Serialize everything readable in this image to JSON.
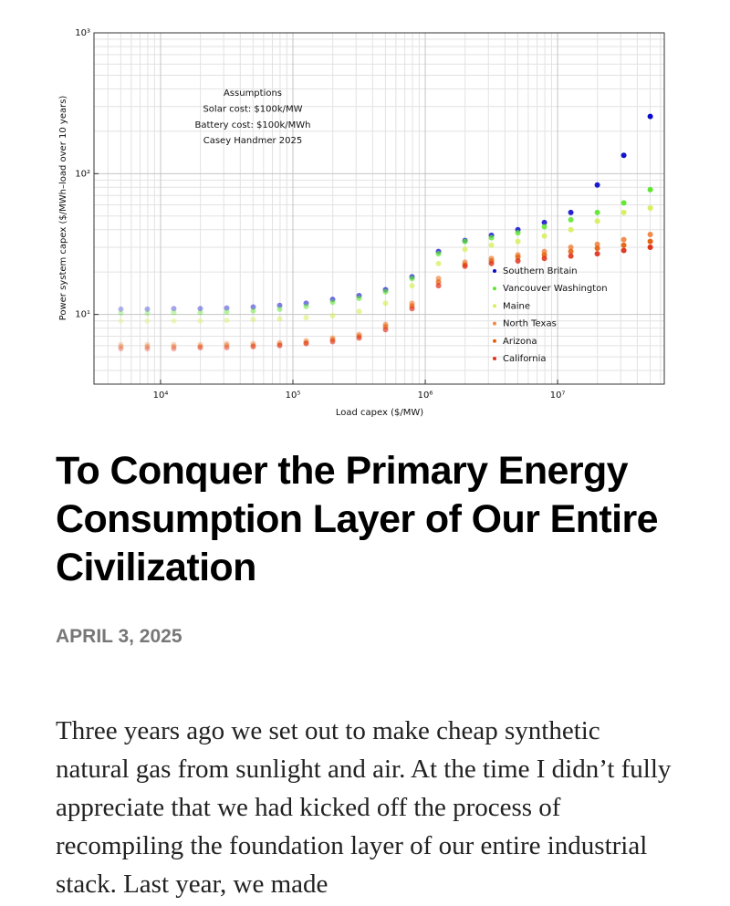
{
  "chart_data": {
    "type": "scatter",
    "xlabel": "Load capex ($/MW)",
    "ylabel": "Power system capex ($/MWh–load over 10 years)",
    "annotation": [
      "Assumptions",
      "Solar cost: $100k/MW",
      "Battery cost: $100k/MWh",
      "Casey Handmer 2025"
    ],
    "xlog": true,
    "ylog": true,
    "grid": true,
    "minor_grid": true,
    "legend": "lower right",
    "xlim": [
      3140,
      64000000
    ],
    "ylim": [
      3.2,
      1000
    ],
    "xticks": [
      {
        "value": 10000,
        "label": "10⁴"
      },
      {
        "value": 100000,
        "label": "10⁵"
      },
      {
        "value": 1000000,
        "label": "10⁶"
      },
      {
        "value": 10000000,
        "label": "10⁷"
      }
    ],
    "yticks": [
      {
        "value": 10,
        "label": "10¹"
      },
      {
        "value": 100,
        "label": "10²"
      },
      {
        "value": 1000,
        "label": "10³"
      }
    ],
    "x": [
      5012,
      7943,
      12589,
      19953,
      31623,
      50119,
      79433,
      125893,
      199526,
      316228,
      501187,
      794328,
      1258925,
      1995262,
      3162278,
      5011872,
      7943282,
      12589254,
      19952623,
      31622777,
      50118723
    ],
    "series": [
      {
        "name": "Southern Britain",
        "color": "#0a0acc",
        "values": [
          10.9,
          10.9,
          11,
          11,
          11.1,
          11.3,
          11.6,
          12,
          12.8,
          13.6,
          15,
          18.5,
          28,
          33.5,
          36.5,
          40,
          45,
          53,
          83,
          135,
          255
        ]
      },
      {
        "name": "Vancouver Washington",
        "color": "#5ee62e",
        "values": [
          10.2,
          10.2,
          10.3,
          10.3,
          10.4,
          10.6,
          10.9,
          11.4,
          12.2,
          13,
          14.5,
          18,
          27,
          33,
          35,
          38,
          42,
          47,
          53,
          62,
          77
        ]
      },
      {
        "name": "Maine",
        "color": "#d6ef5a",
        "values": [
          9,
          9,
          9,
          9,
          9.1,
          9.2,
          9.3,
          9.5,
          9.8,
          10.5,
          12,
          16,
          23,
          29,
          31,
          33,
          36,
          40,
          46,
          53,
          57
        ]
      },
      {
        "name": "North Texas",
        "color": "#f08a4a",
        "values": [
          6.1,
          6.1,
          6.1,
          6.1,
          6.2,
          6.2,
          6.3,
          6.5,
          6.8,
          7.2,
          8.5,
          12,
          18,
          23.5,
          25,
          26.5,
          28,
          30,
          31.5,
          34,
          37
        ]
      },
      {
        "name": "Arizona",
        "color": "#e6620f",
        "values": [
          5.9,
          5.9,
          5.9,
          5.9,
          6,
          6,
          6.1,
          6.3,
          6.6,
          7,
          8.2,
          11.5,
          17,
          22.5,
          24,
          25.5,
          26.5,
          28,
          29.5,
          31,
          33
        ]
      },
      {
        "name": "California",
        "color": "#e0321a",
        "values": [
          5.7,
          5.7,
          5.7,
          5.8,
          5.8,
          5.9,
          6,
          6.2,
          6.4,
          6.8,
          7.8,
          11,
          16,
          22,
          23,
          24,
          25,
          26,
          27,
          28.5,
          30
        ]
      }
    ]
  },
  "article": {
    "title": "To Conquer the Primary Energy Consumption Layer of Our Entire Civilization",
    "date": "APRIL 3, 2025",
    "body": "Three years ago we set out to make cheap synthetic natural gas from sunlight and air. At the time I didn’t fully appreciate that we had kicked off the process of recompiling the foundation layer of our entire industrial stack.  Last year, we made"
  }
}
